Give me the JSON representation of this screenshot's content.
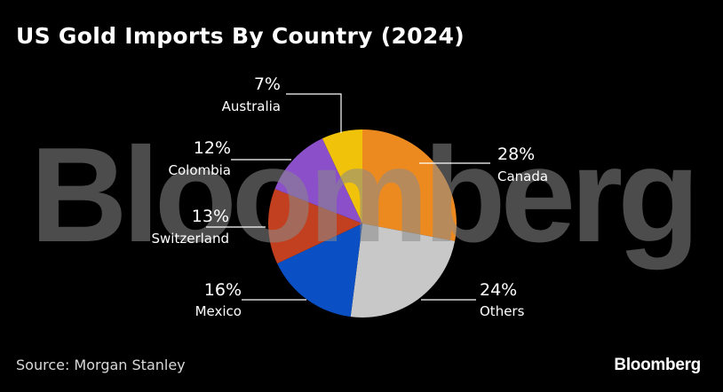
{
  "title": "US Gold Imports By Country (2024)",
  "source": "Source: Morgan Stanley",
  "brand": "Bloomberg",
  "watermark": "Bloomberg",
  "chart_data": {
    "type": "pie",
    "title": "US Gold Imports By Country (2024)",
    "slices": [
      {
        "label": "Canada",
        "value": 28,
        "value_label": "28%",
        "color": "#ec8a20"
      },
      {
        "label": "Others",
        "value": 24,
        "value_label": "24%",
        "color": "#c8c8c8"
      },
      {
        "label": "Mexico",
        "value": 16,
        "value_label": "16%",
        "color": "#0a4fc4"
      },
      {
        "label": "Switzerland",
        "value": 13,
        "value_label": "13%",
        "color": "#c2401f"
      },
      {
        "label": "Colombia",
        "value": 12,
        "value_label": "12%",
        "color": "#8a4fc9"
      },
      {
        "label": "Australia",
        "value": 7,
        "value_label": "7%",
        "color": "#f0c20a"
      }
    ],
    "start_angle": "12 o'clock",
    "direction": "clockwise",
    "legend": "none"
  }
}
